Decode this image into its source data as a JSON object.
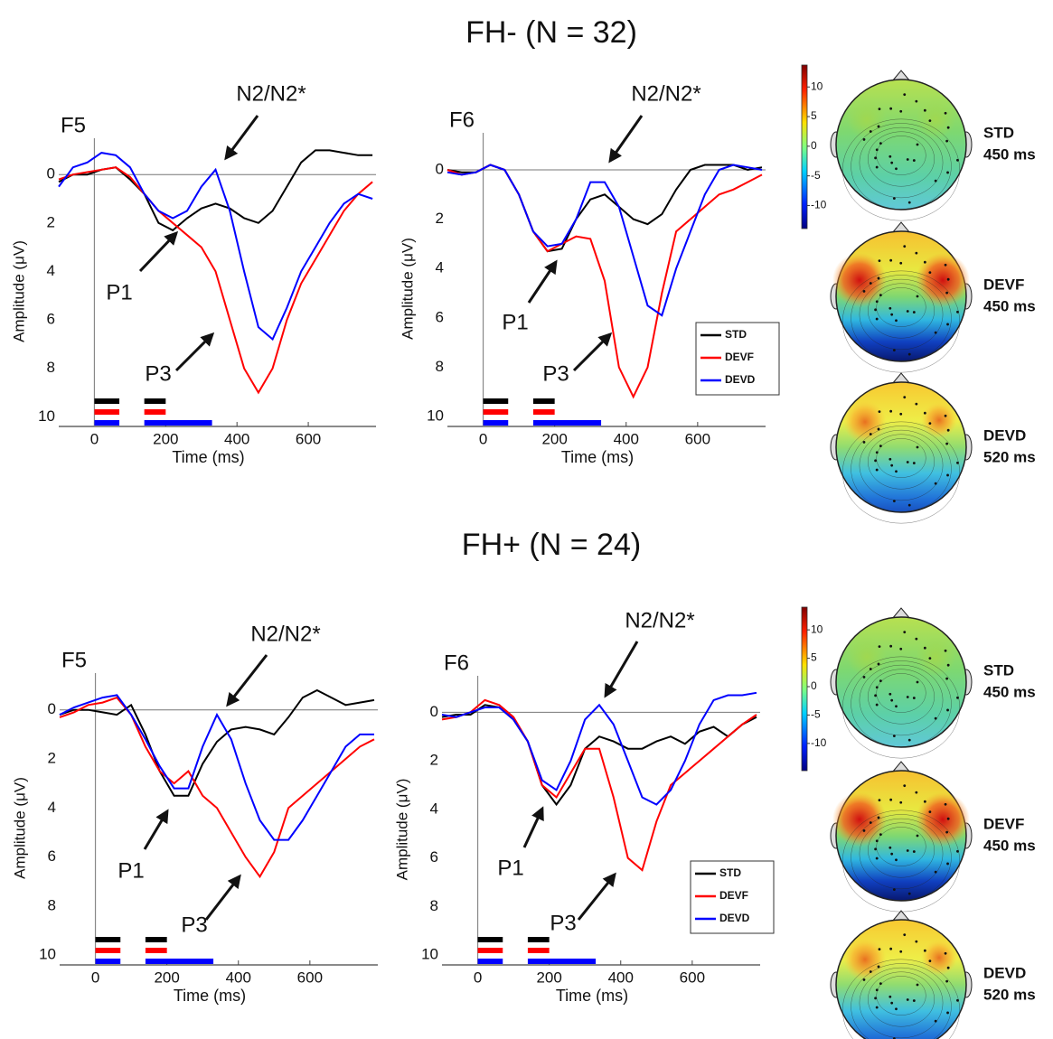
{
  "groups": [
    {
      "title": "FH- (N = 32)",
      "colorbar_ticks": [
        10,
        5,
        0,
        -5,
        -10
      ],
      "colorbar_lim": [
        -13.9,
        13.7
      ],
      "topomaps": [
        {
          "label": "STD",
          "time": "450 ms"
        },
        {
          "label": "DEVF",
          "time": "450 ms"
        },
        {
          "label": "DEVD",
          "time": "520 ms"
        }
      ]
    },
    {
      "title": "FH+ (N = 24)",
      "colorbar_ticks": [
        10,
        5,
        0,
        -5,
        -10
      ],
      "colorbar_lim": [
        -14.8,
        14.0
      ],
      "topomaps": [
        {
          "label": "STD",
          "time": "450 ms"
        },
        {
          "label": "DEVF",
          "time": "450 ms"
        },
        {
          "label": "DEVD",
          "time": "520 ms"
        }
      ]
    }
  ],
  "chart_data": [
    {
      "type": "line",
      "title": "F5",
      "xlabel": "Time (ms)",
      "ylabel": "Amplitude (μV)",
      "annotations": [
        "N2/N2*",
        "P1",
        "P3"
      ],
      "xlim": [
        -100,
        790
      ],
      "ylim": [
        -1.5,
        10.4
      ],
      "invert_y": true,
      "xticks": [
        0,
        200,
        400,
        600
      ],
      "yticks": [
        0,
        2,
        4,
        6,
        8,
        10
      ],
      "legend": false,
      "x": [
        -100,
        -60,
        -20,
        20,
        60,
        100,
        140,
        180,
        220,
        260,
        300,
        340,
        380,
        420,
        460,
        500,
        540,
        580,
        620,
        660,
        700,
        740,
        780
      ],
      "series": [
        {
          "name": "STD",
          "color": "#000000",
          "sig_windows": [
            [
              0,
              70
            ],
            [
              140,
              200
            ]
          ],
          "values": [
            0.3,
            0,
            0,
            -0.2,
            -0.3,
            0.2,
            0.8,
            2.0,
            2.3,
            1.8,
            1.4,
            1.2,
            1.4,
            1.8,
            2.0,
            1.5,
            0.5,
            -0.5,
            -1.0,
            -1.0,
            -0.9,
            -0.8,
            -0.8
          ]
        },
        {
          "name": "DEVF",
          "color": "#ff0000",
          "sig_windows": [
            [
              0,
              70
            ],
            [
              140,
              200
            ]
          ],
          "values": [
            0.2,
            0,
            -0.1,
            -0.2,
            -0.3,
            0.1,
            0.8,
            1.5,
            2.0,
            2.5,
            3.0,
            4.0,
            6.0,
            8.0,
            9.0,
            8.0,
            6.0,
            4.5,
            3.5,
            2.5,
            1.5,
            0.8,
            0.3
          ]
        },
        {
          "name": "DEVD",
          "color": "#0000ff",
          "sig_windows": [
            [
              0,
              70
            ],
            [
              140,
              330
            ]
          ],
          "values": [
            0.5,
            -0.3,
            -0.5,
            -0.9,
            -0.8,
            -0.3,
            0.8,
            1.5,
            1.8,
            1.5,
            0.5,
            -0.2,
            1.5,
            4.0,
            6.3,
            6.8,
            5.5,
            4.0,
            3.0,
            2.0,
            1.2,
            0.8,
            1.0
          ]
        }
      ]
    },
    {
      "type": "line",
      "title": "F6",
      "xlabel": "Time (ms)",
      "ylabel": "Amplitude (μV)",
      "annotations": [
        "N2/N2*",
        "P1",
        "P3"
      ],
      "xlim": [
        -100,
        790
      ],
      "ylim": [
        -1.5,
        10.4
      ],
      "invert_y": true,
      "xticks": [
        0,
        200,
        400,
        600
      ],
      "yticks": [
        0,
        2,
        4,
        6,
        8,
        10
      ],
      "legend": true,
      "x": [
        -100,
        -60,
        -20,
        20,
        60,
        100,
        140,
        180,
        220,
        260,
        300,
        340,
        380,
        420,
        460,
        500,
        540,
        580,
        620,
        660,
        700,
        740,
        780
      ],
      "series": [
        {
          "name": "STD",
          "color": "#000000",
          "sig_windows": [
            [
              0,
              70
            ],
            [
              140,
              200
            ]
          ],
          "values": [
            0,
            0.1,
            0.1,
            -0.2,
            0,
            1.0,
            2.5,
            3.3,
            3.2,
            2.0,
            1.2,
            1.0,
            1.5,
            2.0,
            2.2,
            1.8,
            0.8,
            0,
            -0.2,
            -0.2,
            -0.2,
            0,
            -0.1
          ]
        },
        {
          "name": "DEVF",
          "color": "#ff0000",
          "sig_windows": [
            [
              0,
              70
            ],
            [
              140,
              200
            ]
          ],
          "values": [
            0,
            0.2,
            0.1,
            -0.2,
            0,
            1.0,
            2.5,
            3.3,
            3.0,
            2.7,
            2.8,
            4.5,
            8.0,
            9.2,
            8.0,
            5.0,
            2.5,
            2.0,
            1.5,
            1.0,
            0.8,
            0.5,
            0.2
          ]
        },
        {
          "name": "DEVD",
          "color": "#0000ff",
          "sig_windows": [
            [
              0,
              70
            ],
            [
              140,
              330
            ]
          ],
          "values": [
            0.1,
            0.2,
            0.1,
            -0.2,
            0,
            1.0,
            2.5,
            3.1,
            3.0,
            2.0,
            0.5,
            0.5,
            1.5,
            3.5,
            5.5,
            5.9,
            4.0,
            2.5,
            1.0,
            0,
            -0.2,
            -0.1,
            0
          ]
        }
      ]
    },
    {
      "type": "line",
      "title": "F5",
      "xlabel": "Time (ms)",
      "ylabel": "Amplitude (μV)",
      "annotations": [
        "N2/N2*",
        "P1",
        "P3"
      ],
      "xlim": [
        -100,
        790
      ],
      "ylim": [
        -1.5,
        10.4
      ],
      "invert_y": true,
      "xticks": [
        0,
        200,
        400,
        600
      ],
      "yticks": [
        0,
        2,
        4,
        6,
        8,
        10
      ],
      "legend": false,
      "x": [
        -100,
        -60,
        -20,
        20,
        60,
        100,
        140,
        180,
        220,
        260,
        300,
        340,
        380,
        420,
        460,
        500,
        540,
        580,
        620,
        660,
        700,
        740,
        780
      ],
      "series": [
        {
          "name": "STD",
          "color": "#000000",
          "sig_windows": [
            [
              0,
              70
            ],
            [
              140,
              200
            ]
          ],
          "values": [
            0.2,
            0,
            0,
            0.1,
            0.2,
            -0.2,
            1.0,
            2.5,
            3.5,
            3.5,
            2.2,
            1.3,
            0.8,
            0.7,
            0.8,
            1.0,
            0.3,
            -0.5,
            -0.8,
            -0.5,
            -0.2,
            -0.3,
            -0.4
          ]
        },
        {
          "name": "DEVF",
          "color": "#ff0000",
          "sig_windows": [
            [
              0,
              70
            ],
            [
              140,
              200
            ]
          ],
          "values": [
            0.3,
            0.1,
            -0.2,
            -0.3,
            -0.5,
            0.2,
            1.5,
            2.5,
            3.0,
            2.5,
            3.5,
            4.0,
            5.0,
            6.0,
            6.8,
            5.8,
            4.0,
            3.5,
            3.0,
            2.5,
            2.0,
            1.5,
            1.2
          ]
        },
        {
          "name": "DEVD",
          "color": "#0000ff",
          "sig_windows": [
            [
              0,
              70
            ],
            [
              140,
              330
            ]
          ],
          "values": [
            0.2,
            -0.1,
            -0.3,
            -0.5,
            -0.6,
            0.2,
            1.2,
            2.3,
            3.2,
            3.2,
            1.5,
            0.2,
            1.2,
            3.0,
            4.5,
            5.3,
            5.3,
            4.5,
            3.5,
            2.5,
            1.5,
            1.0,
            1.0
          ]
        }
      ]
    },
    {
      "type": "line",
      "title": "F6",
      "xlabel": "Time (ms)",
      "ylabel": "Amplitude (μV)",
      "annotations": [
        "N2/N2*",
        "P1",
        "P3"
      ],
      "xlim": [
        -100,
        790
      ],
      "ylim": [
        -1.5,
        10.4
      ],
      "invert_y": true,
      "xticks": [
        0,
        200,
        400,
        600
      ],
      "yticks": [
        0,
        2,
        4,
        6,
        8,
        10
      ],
      "legend": true,
      "x": [
        -100,
        -60,
        -20,
        20,
        60,
        100,
        140,
        180,
        220,
        260,
        300,
        340,
        380,
        420,
        460,
        500,
        540,
        580,
        620,
        660,
        700,
        740,
        780
      ],
      "series": [
        {
          "name": "STD",
          "color": "#000000",
          "sig_windows": [
            [
              0,
              70
            ],
            [
              140,
              200
            ]
          ],
          "values": [
            0.2,
            0.1,
            0.1,
            -0.3,
            -0.2,
            0.3,
            1.2,
            3.0,
            3.8,
            3.0,
            1.5,
            1.0,
            1.2,
            1.5,
            1.5,
            1.2,
            1.0,
            1.3,
            0.8,
            0.6,
            1.0,
            0.5,
            0.2
          ]
        },
        {
          "name": "DEVF",
          "color": "#ff0000",
          "sig_windows": [
            [
              0,
              70
            ],
            [
              140,
              200
            ]
          ],
          "values": [
            0.3,
            0.2,
            0,
            -0.5,
            -0.3,
            0.2,
            1.2,
            3.0,
            3.5,
            2.5,
            1.5,
            1.5,
            3.5,
            6.0,
            6.5,
            4.5,
            3.0,
            2.5,
            2.0,
            1.5,
            1.0,
            0.5,
            0.1
          ]
        },
        {
          "name": "DEVD",
          "color": "#0000ff",
          "sig_windows": [
            [
              0,
              70
            ],
            [
              140,
              330
            ]
          ],
          "values": [
            0.1,
            0.2,
            0,
            -0.2,
            -0.2,
            0.3,
            1.2,
            2.8,
            3.2,
            2.0,
            0.3,
            -0.3,
            0.5,
            2.0,
            3.5,
            3.8,
            3.2,
            2.0,
            0.5,
            -0.5,
            -0.7,
            -0.7,
            -0.8
          ]
        }
      ]
    }
  ]
}
